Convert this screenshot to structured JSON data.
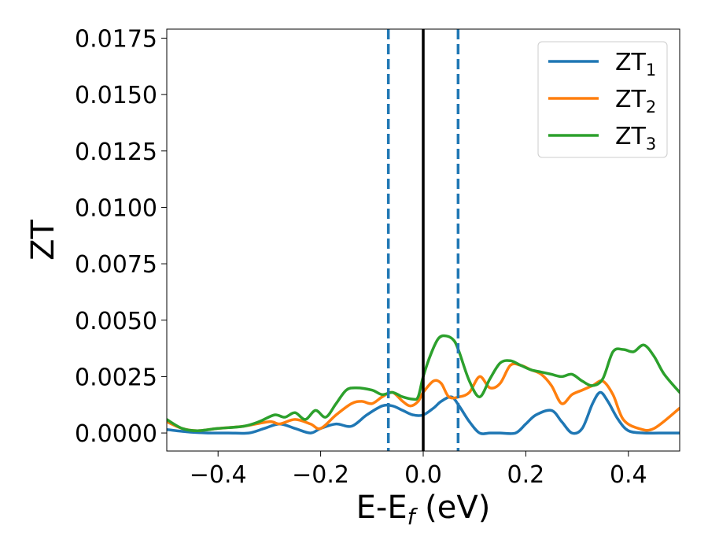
{
  "chart_data": {
    "type": "line",
    "xlabel": "E-E",
    "xlabel_sub": "f",
    "xlabel_tail": " (eV)",
    "ylabel": "ZT",
    "xlim": [
      -0.5,
      0.5
    ],
    "ylim": [
      -0.0008,
      0.0179
    ],
    "xticks": [
      -0.4,
      -0.2,
      0.0,
      0.2,
      0.4
    ],
    "xtick_labels": [
      "−0.4",
      "−0.2",
      "0.0",
      "0.2",
      "0.4"
    ],
    "yticks": [
      0.0,
      0.0025,
      0.005,
      0.0075,
      0.01,
      0.0125,
      0.015,
      0.0175
    ],
    "ytick_labels": [
      "0.0000",
      "0.0025",
      "0.0050",
      "0.0075",
      "0.0100",
      "0.0125",
      "0.0150",
      "0.0175"
    ],
    "grid": false,
    "legend_position": "top-right",
    "vlines": [
      {
        "x": -0.068,
        "style": "dashed",
        "color": "#1f77b4"
      },
      {
        "x": 0.068,
        "style": "dashed",
        "color": "#1f77b4"
      },
      {
        "x": 0.0,
        "style": "solid",
        "color": "#000000"
      }
    ],
    "series": [
      {
        "name": "ZT",
        "sub": "1",
        "color": "#1f77b4",
        "x": [
          -0.5,
          -0.46,
          -0.42,
          -0.38,
          -0.34,
          -0.31,
          -0.28,
          -0.25,
          -0.22,
          -0.2,
          -0.17,
          -0.14,
          -0.11,
          -0.08,
          -0.06,
          -0.04,
          -0.02,
          0.0,
          0.02,
          0.035,
          0.055,
          0.07,
          0.09,
          0.11,
          0.13,
          0.15,
          0.18,
          0.2,
          0.22,
          0.25,
          0.27,
          0.29,
          0.31,
          0.33,
          0.345,
          0.36,
          0.38,
          0.4,
          0.43,
          0.46,
          0.5
        ],
        "y": [
          0.00015,
          5e-05,
          0.0,
          0.0,
          0.0,
          0.0002,
          0.0004,
          0.0002,
          0.0,
          0.0002,
          0.0004,
          0.0003,
          0.0008,
          0.0012,
          0.0012,
          0.001,
          0.0008,
          0.0008,
          0.0011,
          0.0014,
          0.0016,
          0.0012,
          0.0005,
          0.0,
          0.0,
          0.0,
          0.0,
          0.0004,
          0.0008,
          0.001,
          0.0005,
          0.0,
          0.0002,
          0.0013,
          0.0018,
          0.0014,
          0.0006,
          0.0001,
          0.0,
          0.0,
          0.0
        ]
      },
      {
        "name": "ZT",
        "sub": "2",
        "color": "#ff7f0e",
        "x": [
          -0.5,
          -0.47,
          -0.44,
          -0.4,
          -0.35,
          -0.3,
          -0.28,
          -0.25,
          -0.22,
          -0.2,
          -0.17,
          -0.14,
          -0.12,
          -0.1,
          -0.08,
          -0.06,
          -0.04,
          -0.025,
          -0.01,
          0.0,
          0.02,
          0.035,
          0.05,
          0.07,
          0.09,
          0.11,
          0.13,
          0.15,
          0.17,
          0.19,
          0.21,
          0.23,
          0.25,
          0.27,
          0.29,
          0.31,
          0.33,
          0.35,
          0.37,
          0.39,
          0.42,
          0.45,
          0.5
        ],
        "y": [
          0.0005,
          0.0002,
          0.0001,
          0.0002,
          0.0003,
          0.0005,
          0.0004,
          0.0006,
          0.0004,
          0.0002,
          0.0008,
          0.0013,
          0.0014,
          0.0013,
          0.0016,
          0.0018,
          0.0014,
          0.0012,
          0.0014,
          0.0018,
          0.0023,
          0.0022,
          0.0016,
          0.0016,
          0.0018,
          0.0025,
          0.002,
          0.0022,
          0.003,
          0.003,
          0.0028,
          0.0026,
          0.0021,
          0.0013,
          0.0017,
          0.0019,
          0.0021,
          0.0023,
          0.0017,
          0.0006,
          0.0002,
          0.0002,
          0.0011
        ]
      },
      {
        "name": "ZT",
        "sub": "3",
        "color": "#2ca02c",
        "x": [
          -0.5,
          -0.47,
          -0.44,
          -0.4,
          -0.35,
          -0.32,
          -0.29,
          -0.27,
          -0.25,
          -0.23,
          -0.21,
          -0.19,
          -0.17,
          -0.15,
          -0.13,
          -0.1,
          -0.08,
          -0.06,
          -0.04,
          -0.02,
          -0.01,
          0.0,
          0.015,
          0.03,
          0.045,
          0.06,
          0.07,
          0.09,
          0.11,
          0.13,
          0.15,
          0.17,
          0.19,
          0.21,
          0.23,
          0.25,
          0.27,
          0.29,
          0.31,
          0.33,
          0.35,
          0.37,
          0.39,
          0.41,
          0.43,
          0.45,
          0.47,
          0.5
        ],
        "y": [
          0.0006,
          0.0002,
          0.0001,
          0.0002,
          0.0003,
          0.0005,
          0.0008,
          0.0007,
          0.0009,
          0.0006,
          0.001,
          0.0007,
          0.0013,
          0.0019,
          0.002,
          0.0019,
          0.0017,
          0.0018,
          0.0016,
          0.0015,
          0.0016,
          0.0025,
          0.0035,
          0.0042,
          0.0043,
          0.0041,
          0.0036,
          0.0023,
          0.0016,
          0.0024,
          0.0031,
          0.0032,
          0.003,
          0.0028,
          0.0027,
          0.0026,
          0.0025,
          0.0026,
          0.0023,
          0.0021,
          0.0024,
          0.0036,
          0.0037,
          0.0036,
          0.0039,
          0.0034,
          0.0026,
          0.0018
        ]
      }
    ]
  }
}
